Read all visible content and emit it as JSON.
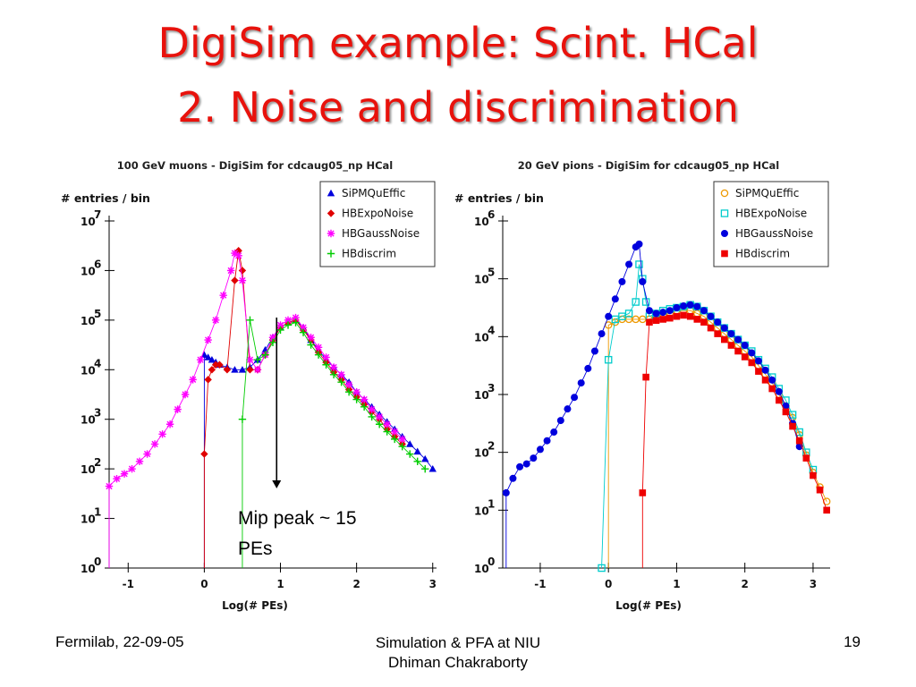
{
  "slide": {
    "title_line1": "DigiSim example: Scint. HCal",
    "title_line2": "2. Noise and discrimination",
    "footer_left": "Fermilab, 22-09-05",
    "footer_center_line1": "Simulation & PFA at NIU",
    "footer_center_line2": "Dhiman Chakraborty",
    "footer_right": "19",
    "annotation_line1": "Mip peak ~ 15",
    "annotation_line2": "PEs"
  },
  "chart_data": [
    {
      "type": "scatter",
      "title": "100 GeV muons - DigiSim for cdcaug05_np HCal",
      "xlabel": "Log(# PEs)",
      "ylabel": "# entries / bin",
      "xlim": [
        -1.25,
        3.05
      ],
      "ylim": [
        0,
        7
      ],
      "y_scale": "log",
      "xticks": [
        "-1",
        "0",
        "1",
        "2",
        "3"
      ],
      "xtick_values": [
        -1,
        0,
        1,
        2,
        3
      ],
      "yticks": [
        "0",
        "1",
        "2",
        "3",
        "4",
        "5",
        "6",
        "7"
      ],
      "ytick_base": "10",
      "legend": "top-right",
      "series": [
        {
          "name": "SiPMQuEffic",
          "color": "#0000dd",
          "marker": "triangle",
          "x": [
            0.0,
            0.05,
            0.1,
            0.15,
            0.2,
            0.3,
            0.4,
            0.5,
            0.6,
            0.7,
            0.8,
            0.9,
            1.0,
            1.1,
            1.2,
            1.3,
            1.4,
            1.5,
            1.6,
            1.7,
            1.8,
            1.9,
            2.0,
            2.1,
            2.2,
            2.3,
            2.4,
            2.5,
            2.6,
            2.7,
            2.8,
            2.9,
            3.0
          ],
          "y": [
            4.3,
            4.25,
            4.2,
            4.15,
            4.1,
            4.05,
            4.0,
            4.0,
            4.05,
            4.2,
            4.4,
            4.65,
            4.85,
            4.95,
            5.0,
            4.85,
            4.6,
            4.4,
            4.2,
            4.05,
            3.9,
            3.75,
            3.55,
            3.4,
            3.25,
            3.1,
            2.95,
            2.8,
            2.65,
            2.5,
            2.35,
            2.2,
            2.0
          ]
        },
        {
          "name": "HBExpoNoise",
          "color": "#e00000",
          "marker": "diamond",
          "x": [
            0.0,
            0.05,
            0.1,
            0.15,
            0.2,
            0.3,
            0.4,
            0.45,
            0.5,
            0.6,
            0.7,
            0.8,
            0.9,
            1.0,
            1.1,
            1.2,
            1.3,
            1.4,
            1.5,
            1.6,
            1.7,
            1.8,
            1.9,
            2.0,
            2.1,
            2.2,
            2.3,
            2.4,
            2.5,
            2.6
          ],
          "y": [
            2.3,
            3.8,
            4.0,
            4.1,
            4.1,
            4.0,
            5.8,
            6.4,
            6.0,
            4.0,
            4.0,
            4.3,
            4.6,
            4.85,
            4.95,
            5.0,
            4.8,
            4.6,
            4.35,
            4.15,
            3.95,
            3.8,
            3.6,
            3.45,
            3.3,
            3.15,
            3.0,
            2.8,
            2.65,
            2.5
          ]
        },
        {
          "name": "HBGaussNoise",
          "color": "#ff00ff",
          "marker": "asterisk",
          "x": [
            -1.25,
            -1.15,
            -1.05,
            -0.95,
            -0.85,
            -0.75,
            -0.65,
            -0.55,
            -0.45,
            -0.35,
            -0.25,
            -0.15,
            -0.05,
            0.05,
            0.15,
            0.25,
            0.35,
            0.4,
            0.45,
            0.5,
            0.6,
            0.7,
            0.8,
            0.9,
            1.0,
            1.1,
            1.2,
            1.3,
            1.4,
            1.5,
            1.6,
            1.7,
            1.8,
            1.9,
            2.0,
            2.1,
            2.2,
            2.3,
            2.4,
            2.5,
            2.6
          ],
          "y": [
            1.65,
            1.8,
            1.9,
            2.0,
            2.15,
            2.3,
            2.5,
            2.7,
            2.9,
            3.2,
            3.5,
            3.8,
            4.2,
            4.6,
            5.0,
            5.5,
            6.0,
            6.35,
            6.3,
            5.8,
            4.2,
            4.0,
            4.3,
            4.65,
            4.9,
            5.0,
            5.05,
            4.85,
            4.65,
            4.45,
            4.25,
            4.05,
            3.9,
            3.7,
            3.55,
            3.4,
            3.2,
            3.05,
            2.9,
            2.75,
            2.6
          ]
        },
        {
          "name": "HBdiscrim",
          "color": "#00cc00",
          "marker": "plus",
          "x": [
            0.5,
            0.6,
            0.7,
            0.8,
            0.9,
            1.0,
            1.1,
            1.2,
            1.3,
            1.4,
            1.5,
            1.6,
            1.7,
            1.8,
            1.9,
            2.0,
            2.1,
            2.2,
            2.3,
            2.4,
            2.5,
            2.6,
            2.7,
            2.8,
            2.9
          ],
          "y": [
            3.0,
            5.0,
            4.2,
            4.3,
            4.55,
            4.8,
            4.9,
            4.95,
            4.75,
            4.5,
            4.3,
            4.1,
            3.9,
            3.75,
            3.55,
            3.4,
            3.25,
            3.05,
            2.9,
            2.75,
            2.6,
            2.45,
            2.3,
            2.15,
            2.0
          ]
        }
      ]
    },
    {
      "type": "scatter",
      "title": "20 GeV pions - DigiSim for cdcaug05_np HCal",
      "xlabel": "Log(# PEs)",
      "ylabel": "# entries / bin",
      "xlim": [
        -1.55,
        3.25
      ],
      "ylim": [
        0,
        6
      ],
      "y_scale": "log",
      "xticks": [
        "-1",
        "0",
        "1",
        "2",
        "3"
      ],
      "xtick_values": [
        -1,
        0,
        1,
        2,
        3
      ],
      "yticks": [
        "0",
        "1",
        "2",
        "3",
        "4",
        "5",
        "6"
      ],
      "ytick_base": "10",
      "legend": "top-right",
      "series": [
        {
          "name": "SiPMQuEffic",
          "color": "#ee9900",
          "marker": "circle-open",
          "x": [
            0.0,
            0.1,
            0.2,
            0.3,
            0.4,
            0.5,
            0.6,
            0.7,
            0.8,
            0.9,
            1.0,
            1.1,
            1.2,
            1.3,
            1.4,
            1.5,
            1.6,
            1.7,
            1.8,
            1.9,
            2.0,
            2.1,
            2.2,
            2.3,
            2.4,
            2.5,
            2.6,
            2.7,
            2.8,
            2.9,
            3.0,
            3.1,
            3.2
          ],
          "y": [
            4.2,
            4.25,
            4.3,
            4.3,
            4.3,
            4.3,
            4.3,
            4.35,
            4.38,
            4.4,
            4.45,
            4.45,
            4.45,
            4.4,
            4.35,
            4.25,
            4.15,
            4.05,
            3.95,
            3.85,
            3.75,
            3.65,
            3.5,
            3.35,
            3.2,
            3.0,
            2.8,
            2.6,
            2.3,
            1.95,
            1.65,
            1.4,
            1.15
          ]
        },
        {
          "name": "HBExpoNoise",
          "color": "#00cccc",
          "marker": "square-open",
          "x": [
            -0.1,
            0.0,
            0.1,
            0.2,
            0.3,
            0.4,
            0.45,
            0.5,
            0.55,
            0.6,
            0.7,
            0.8,
            0.9,
            1.0,
            1.1,
            1.2,
            1.3,
            1.4,
            1.5,
            1.6,
            1.7,
            1.8,
            1.9,
            2.0,
            2.1,
            2.2,
            2.3,
            2.4,
            2.5,
            2.6,
            2.7,
            2.8,
            2.9,
            3.0
          ],
          "y": [
            0.0,
            3.6,
            4.3,
            4.35,
            4.4,
            4.6,
            5.25,
            5.0,
            4.6,
            4.35,
            4.4,
            4.45,
            4.48,
            4.5,
            4.52,
            4.55,
            4.52,
            4.45,
            4.35,
            4.25,
            4.15,
            4.05,
            3.95,
            3.85,
            3.75,
            3.6,
            3.45,
            3.3,
            3.1,
            2.9,
            2.65,
            2.35,
            2.0,
            1.7
          ]
        },
        {
          "name": "HBGaussNoise",
          "color": "#0000dd",
          "marker": "circle",
          "x": [
            -1.5,
            -1.4,
            -1.3,
            -1.2,
            -1.1,
            -1.0,
            -0.9,
            -0.8,
            -0.7,
            -0.6,
            -0.5,
            -0.4,
            -0.3,
            -0.2,
            -0.1,
            0.0,
            0.1,
            0.2,
            0.3,
            0.4,
            0.45,
            0.5,
            0.6,
            0.7,
            0.8,
            0.9,
            1.0,
            1.1,
            1.2,
            1.3,
            1.4,
            1.5,
            1.6,
            1.7,
            1.8,
            1.9,
            2.0,
            2.1,
            2.2,
            2.3,
            2.4,
            2.5,
            2.6,
            2.7,
            2.8
          ],
          "y": [
            1.3,
            1.55,
            1.75,
            1.8,
            1.9,
            2.05,
            2.2,
            2.35,
            2.55,
            2.75,
            2.95,
            3.2,
            3.45,
            3.75,
            4.05,
            4.35,
            4.65,
            4.95,
            5.25,
            5.55,
            5.6,
            4.95,
            4.45,
            4.4,
            4.42,
            4.45,
            4.5,
            4.53,
            4.55,
            4.52,
            4.45,
            4.35,
            4.25,
            4.15,
            4.05,
            3.95,
            3.85,
            3.72,
            3.58,
            3.42,
            3.25,
            3.05,
            2.8,
            2.5,
            2.1
          ]
        },
        {
          "name": "HBdiscrim",
          "color": "#ee0000",
          "marker": "square",
          "x": [
            0.5,
            0.55,
            0.6,
            0.7,
            0.8,
            0.9,
            1.0,
            1.1,
            1.2,
            1.3,
            1.4,
            1.5,
            1.6,
            1.7,
            1.8,
            1.9,
            2.0,
            2.1,
            2.2,
            2.3,
            2.4,
            2.5,
            2.6,
            2.7,
            2.8,
            2.9,
            3.0,
            3.1,
            3.2
          ],
          "y": [
            1.3,
            3.3,
            4.25,
            4.28,
            4.3,
            4.32,
            4.35,
            4.37,
            4.35,
            4.3,
            4.25,
            4.15,
            4.05,
            3.95,
            3.85,
            3.75,
            3.65,
            3.55,
            3.4,
            3.25,
            3.1,
            2.9,
            2.7,
            2.45,
            2.2,
            1.9,
            1.6,
            1.35,
            1.0
          ]
        }
      ]
    }
  ]
}
